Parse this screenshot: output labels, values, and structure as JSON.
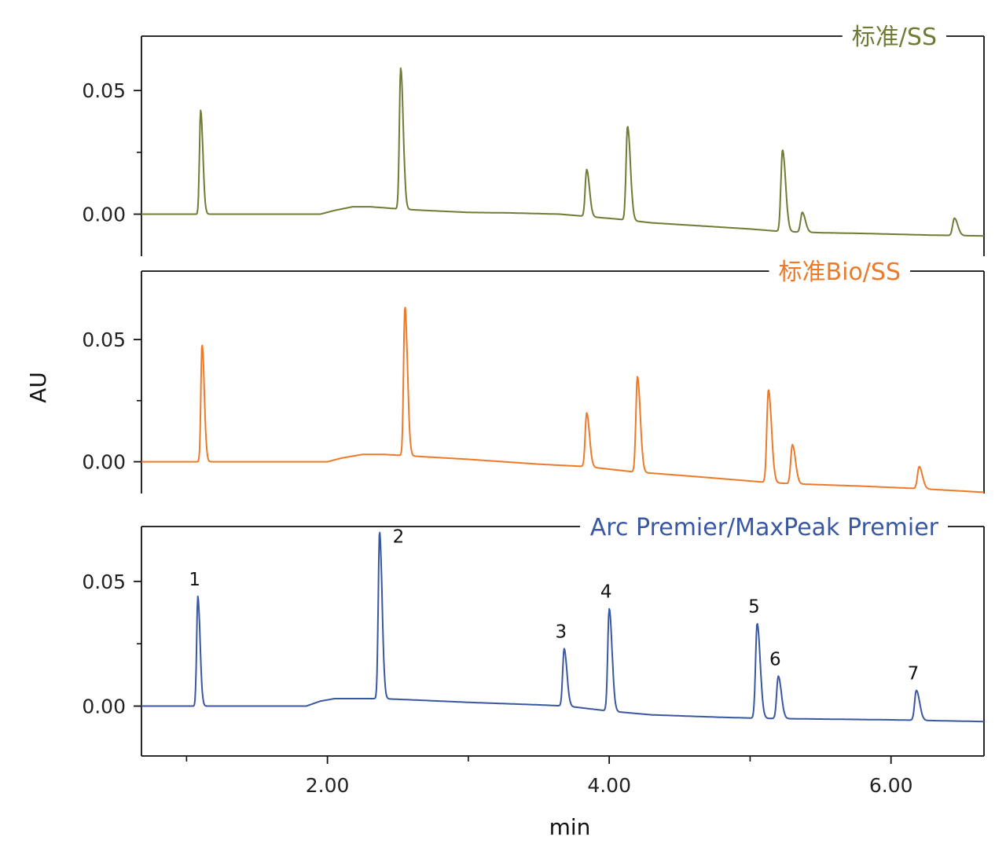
{
  "colors": {
    "ss": "#717b35",
    "bio": "#ec7a2a",
    "premier": "#3a58a2",
    "axis": "#111111"
  },
  "chart_data": {
    "type": "line",
    "xlabel": "min",
    "ylabel": "AU",
    "xlim": [
      0.68,
      6.66
    ],
    "x_ticks": [
      {
        "value": 2.0,
        "label": "2.00"
      },
      {
        "value": 4.0,
        "label": "4.00"
      },
      {
        "value": 6.0,
        "label": "6.00"
      }
    ],
    "x_minor_ticks": [
      1.0,
      3.0,
      5.0
    ],
    "panels": [
      {
        "name": "标准/SS",
        "color": "#717b35",
        "ylim": [
          -0.017,
          0.072
        ],
        "y_ticks": [
          {
            "value": 0.0,
            "label": "0.00"
          },
          {
            "value": 0.05,
            "label": "0.05"
          }
        ],
        "y_minor_ticks": [
          0.025
        ],
        "baseline": [
          [
            0.68,
            0.0
          ],
          [
            1.95,
            0.0
          ],
          [
            2.05,
            0.0015
          ],
          [
            2.18,
            0.003
          ],
          [
            2.3,
            0.003
          ],
          [
            2.42,
            0.0025
          ],
          [
            2.53,
            0.002
          ],
          [
            2.7,
            0.0015
          ],
          [
            3.0,
            0.0007
          ],
          [
            3.3,
            0.0005
          ],
          [
            3.65,
            0.0
          ],
          [
            4.06,
            -0.002
          ],
          [
            4.3,
            -0.0035
          ],
          [
            5.0,
            -0.006
          ],
          [
            5.22,
            -0.007
          ],
          [
            5.5,
            -0.0075
          ],
          [
            5.8,
            -0.0078
          ],
          [
            6.3,
            -0.0085
          ],
          [
            6.66,
            -0.0088
          ]
        ],
        "peaks": [
          {
            "t": 1.1,
            "h": 0.042
          },
          {
            "t": 2.52,
            "h": 0.057
          },
          {
            "t": 3.84,
            "h": 0.019
          },
          {
            "t": 4.13,
            "h": 0.038
          },
          {
            "t": 5.23,
            "h": 0.033
          },
          {
            "t": 5.37,
            "h": 0.008
          },
          {
            "t": 6.45,
            "h": 0.007
          }
        ]
      },
      {
        "name": "标准Bio/SS",
        "color": "#ec7a2a",
        "ylim": [
          -0.013,
          0.078
        ],
        "y_ticks": [
          {
            "value": 0.0,
            "label": "0.00"
          },
          {
            "value": 0.05,
            "label": "0.05"
          }
        ],
        "y_minor_ticks": [
          0.025
        ],
        "baseline": [
          [
            0.68,
            0.0
          ],
          [
            2.0,
            0.0
          ],
          [
            2.1,
            0.0015
          ],
          [
            2.25,
            0.003
          ],
          [
            2.4,
            0.003
          ],
          [
            2.55,
            0.0025
          ],
          [
            2.7,
            0.002
          ],
          [
            3.0,
            0.001
          ],
          [
            3.5,
            -0.001
          ],
          [
            3.84,
            -0.002
          ],
          [
            4.15,
            -0.004
          ],
          [
            4.6,
            -0.006
          ],
          [
            5.13,
            -0.0085
          ],
          [
            5.3,
            -0.009
          ],
          [
            5.8,
            -0.01
          ],
          [
            6.2,
            -0.011
          ],
          [
            6.66,
            -0.0125
          ]
        ],
        "peaks": [
          {
            "t": 1.11,
            "h": 0.048
          },
          {
            "t": 2.55,
            "h": 0.061
          },
          {
            "t": 3.84,
            "h": 0.022
          },
          {
            "t": 4.2,
            "h": 0.039
          },
          {
            "t": 5.13,
            "h": 0.038
          },
          {
            "t": 5.3,
            "h": 0.016
          },
          {
            "t": 6.2,
            "h": 0.009
          }
        ]
      },
      {
        "name": "Arc Premier/MaxPeak Premier",
        "color": "#3a58a2",
        "ylim": [
          -0.02,
          0.072
        ],
        "y_ticks": [
          {
            "value": 0.0,
            "label": "0.00"
          },
          {
            "value": 0.05,
            "label": "0.05"
          }
        ],
        "y_minor_ticks": [
          0.025
        ],
        "baseline": [
          [
            0.68,
            0.0
          ],
          [
            1.85,
            0.0
          ],
          [
            1.95,
            0.002
          ],
          [
            2.05,
            0.003
          ],
          [
            2.2,
            0.003
          ],
          [
            2.38,
            0.003
          ],
          [
            2.6,
            0.0025
          ],
          [
            3.0,
            0.0015
          ],
          [
            3.5,
            0.0005
          ],
          [
            3.7,
            0.0
          ],
          [
            4.0,
            -0.002
          ],
          [
            4.3,
            -0.0035
          ],
          [
            4.8,
            -0.0045
          ],
          [
            5.02,
            -0.0048
          ],
          [
            5.2,
            -0.005
          ],
          [
            5.5,
            -0.0052
          ],
          [
            6.0,
            -0.0055
          ],
          [
            6.66,
            -0.0062
          ]
        ],
        "peaks": [
          {
            "t": 1.08,
            "h": 0.044,
            "label": "1"
          },
          {
            "t": 2.37,
            "h": 0.067,
            "label": "2"
          },
          {
            "t": 3.68,
            "h": 0.023,
            "label": "3"
          },
          {
            "t": 4.0,
            "h": 0.041,
            "label": "4"
          },
          {
            "t": 5.05,
            "h": 0.038,
            "label": "5"
          },
          {
            "t": 5.2,
            "h": 0.017,
            "label": "6"
          },
          {
            "t": 6.18,
            "h": 0.012,
            "label": "7"
          }
        ]
      }
    ]
  }
}
